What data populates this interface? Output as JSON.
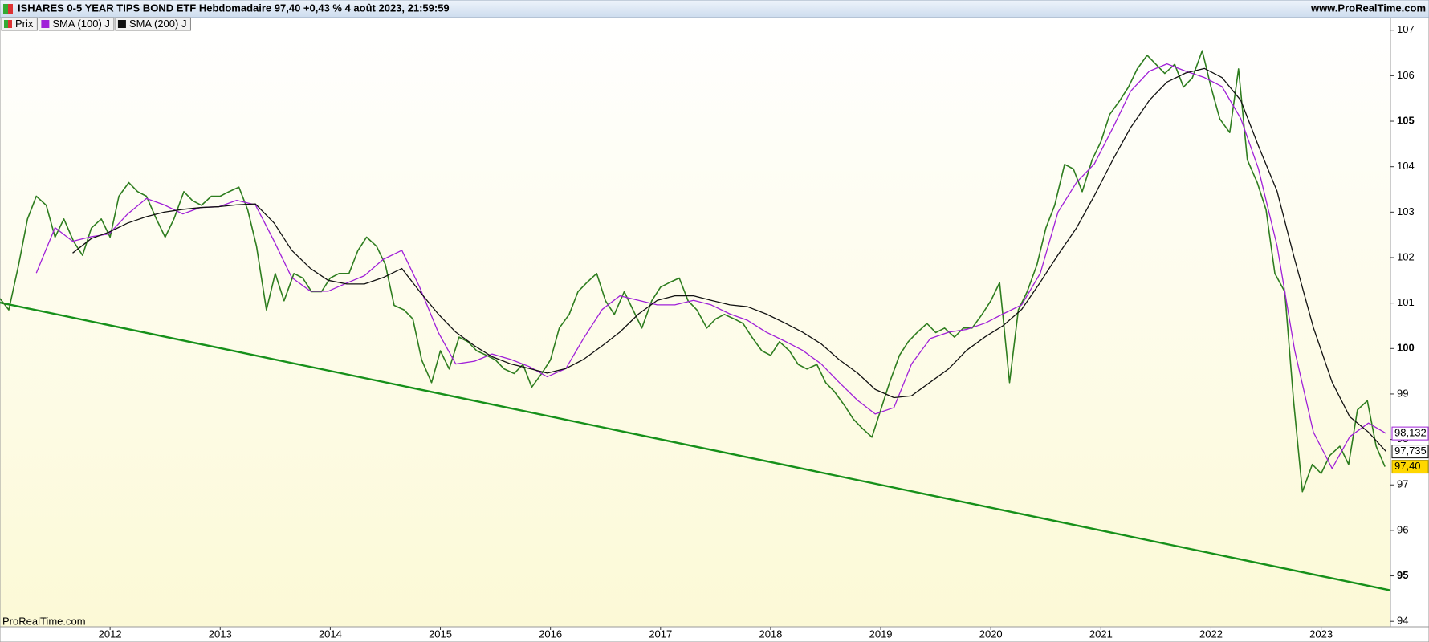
{
  "chart_data": {
    "type": "line",
    "title": "ISHARES 0-5 YEAR TIPS BOND ETF Hebdomadaire 97,40 +0,43 % 4 août 2023, 21:59:59",
    "source_top": "www.ProRealTime.com",
    "source_bottom": "ProRealTime.com",
    "xlim": [
      2011.0,
      2023.63
    ],
    "xticks": [
      2012,
      2013,
      2014,
      2015,
      2016,
      2017,
      2018,
      2019,
      2020,
      2021,
      2022,
      2023
    ],
    "ylim": [
      93.88,
      107.26
    ],
    "yticks": [
      94,
      95,
      96,
      97,
      98,
      99,
      100,
      101,
      102,
      103,
      104,
      105,
      106,
      107
    ],
    "series": [
      {
        "name": "Prix",
        "color": "#2e7d1f",
        "value_label": "97,40",
        "x": [
          2011.0,
          2011.08,
          2011.17,
          2011.25,
          2011.33,
          2011.42,
          2011.5,
          2011.58,
          2011.67,
          2011.75,
          2011.83,
          2011.92,
          2012.0,
          2012.08,
          2012.17,
          2012.25,
          2012.33,
          2012.42,
          2012.5,
          2012.58,
          2012.67,
          2012.75,
          2012.83,
          2012.92,
          2013.0,
          2013.08,
          2013.17,
          2013.25,
          2013.33,
          2013.42,
          2013.5,
          2013.58,
          2013.67,
          2013.75,
          2013.83,
          2013.92,
          2014.0,
          2014.08,
          2014.17,
          2014.25,
          2014.33,
          2014.42,
          2014.5,
          2014.58,
          2014.67,
          2014.75,
          2014.83,
          2014.92,
          2015.0,
          2015.08,
          2015.17,
          2015.25,
          2015.33,
          2015.42,
          2015.5,
          2015.58,
          2015.67,
          2015.75,
          2015.83,
          2015.92,
          2016.0,
          2016.08,
          2016.17,
          2016.25,
          2016.33,
          2016.42,
          2016.5,
          2016.58,
          2016.67,
          2016.75,
          2016.83,
          2016.92,
          2017.0,
          2017.08,
          2017.17,
          2017.25,
          2017.33,
          2017.42,
          2017.5,
          2017.58,
          2017.67,
          2017.75,
          2017.83,
          2017.92,
          2018.0,
          2018.08,
          2018.17,
          2018.25,
          2018.33,
          2018.42,
          2018.5,
          2018.58,
          2018.67,
          2018.75,
          2018.83,
          2018.92,
          2019.0,
          2019.08,
          2019.17,
          2019.25,
          2019.33,
          2019.42,
          2019.5,
          2019.58,
          2019.67,
          2019.75,
          2019.83,
          2019.92,
          2020.0,
          2020.08,
          2020.17,
          2020.25,
          2020.33,
          2020.42,
          2020.5,
          2020.58,
          2020.67,
          2020.75,
          2020.83,
          2020.92,
          2021.0,
          2021.08,
          2021.17,
          2021.25,
          2021.33,
          2021.42,
          2021.5,
          2021.58,
          2021.67,
          2021.75,
          2021.83,
          2021.92,
          2022.0,
          2022.08,
          2022.17,
          2022.25,
          2022.33,
          2022.42,
          2022.5,
          2022.58,
          2022.67,
          2022.75,
          2022.83,
          2022.92,
          2023.0,
          2023.08,
          2023.17,
          2023.25,
          2023.33,
          2023.42,
          2023.5,
          2023.58
        ],
        "values": [
          101.1,
          100.85,
          101.85,
          102.85,
          103.35,
          103.15,
          102.45,
          102.85,
          102.35,
          102.05,
          102.65,
          102.85,
          102.45,
          103.35,
          103.65,
          103.45,
          103.35,
          102.85,
          102.45,
          102.85,
          103.45,
          103.25,
          103.15,
          103.35,
          103.35,
          103.45,
          103.55,
          103.05,
          102.25,
          100.85,
          101.65,
          101.05,
          101.65,
          101.55,
          101.25,
          101.25,
          101.55,
          101.65,
          101.65,
          102.15,
          102.45,
          102.25,
          101.85,
          100.95,
          100.85,
          100.65,
          99.75,
          99.25,
          99.95,
          99.55,
          100.25,
          100.15,
          99.95,
          99.85,
          99.75,
          99.55,
          99.45,
          99.65,
          99.15,
          99.45,
          99.75,
          100.45,
          100.75,
          101.25,
          101.45,
          101.65,
          101.05,
          100.75,
          101.25,
          100.85,
          100.45,
          101.05,
          101.35,
          101.45,
          101.55,
          101.05,
          100.85,
          100.45,
          100.65,
          100.75,
          100.65,
          100.55,
          100.25,
          99.95,
          99.85,
          100.15,
          99.95,
          99.65,
          99.55,
          99.65,
          99.25,
          99.05,
          98.75,
          98.45,
          98.25,
          98.05,
          98.65,
          99.25,
          99.85,
          100.15,
          100.35,
          100.55,
          100.35,
          100.45,
          100.25,
          100.45,
          100.45,
          100.75,
          101.05,
          101.45,
          99.25,
          100.85,
          101.25,
          101.85,
          102.65,
          103.15,
          104.05,
          103.95,
          103.45,
          104.15,
          104.55,
          105.15,
          105.45,
          105.75,
          106.15,
          106.45,
          106.25,
          106.05,
          106.25,
          105.75,
          105.95,
          106.55,
          105.75,
          105.05,
          104.75,
          106.15,
          104.15,
          103.65,
          103.05,
          101.65,
          101.25,
          98.85,
          96.85,
          97.45,
          97.25,
          97.65,
          97.85,
          97.45,
          98.65,
          98.85,
          97.85,
          97.4
        ]
      },
      {
        "name": "SMA (100) J",
        "color": "#a020d8",
        "value_label": "98,132",
        "x": [
          2011.33,
          2011.5,
          2011.66,
          2011.83,
          2011.99,
          2012.16,
          2012.33,
          2012.49,
          2012.66,
          2012.82,
          2012.99,
          2013.15,
          2013.32,
          2013.49,
          2013.65,
          2013.82,
          2013.98,
          2014.15,
          2014.31,
          2014.48,
          2014.65,
          2014.81,
          2014.98,
          2015.14,
          2015.31,
          2015.47,
          2015.64,
          2015.81,
          2015.97,
          2016.14,
          2016.3,
          2016.47,
          2016.63,
          2016.8,
          2016.97,
          2017.13,
          2017.3,
          2017.46,
          2017.63,
          2017.79,
          2017.96,
          2018.13,
          2018.29,
          2018.46,
          2018.62,
          2018.79,
          2018.95,
          2019.12,
          2019.28,
          2019.45,
          2019.62,
          2019.78,
          2019.95,
          2020.11,
          2020.28,
          2020.45,
          2020.61,
          2020.78,
          2020.94,
          2021.11,
          2021.27,
          2021.44,
          2021.6,
          2021.77,
          2021.94,
          2022.1,
          2022.27,
          2022.43,
          2022.6,
          2022.76,
          2022.93,
          2023.1,
          2023.26,
          2023.43,
          2023.59
        ],
        "values": [
          101.66,
          102.66,
          102.36,
          102.46,
          102.52,
          102.96,
          103.3,
          103.16,
          102.96,
          103.1,
          103.12,
          103.26,
          103.16,
          102.36,
          101.56,
          101.26,
          101.26,
          101.44,
          101.6,
          101.96,
          102.16,
          101.36,
          100.36,
          99.66,
          99.72,
          99.88,
          99.76,
          99.6,
          99.38,
          99.56,
          100.22,
          100.86,
          101.16,
          101.06,
          100.96,
          100.96,
          101.06,
          100.96,
          100.76,
          100.62,
          100.36,
          100.16,
          99.96,
          99.66,
          99.26,
          98.86,
          98.56,
          98.7,
          99.66,
          100.22,
          100.36,
          100.42,
          100.56,
          100.76,
          100.96,
          101.66,
          103.0,
          103.66,
          104.06,
          104.86,
          105.66,
          106.1,
          106.26,
          106.1,
          105.96,
          105.76,
          105.06,
          103.96,
          102.26,
          99.96,
          98.16,
          97.36,
          98.06,
          98.36,
          98.132
        ]
      },
      {
        "name": "SMA (200) J",
        "color": "#111111",
        "value_label": "97,735",
        "x": [
          2011.66,
          2011.83,
          2011.99,
          2012.16,
          2012.33,
          2012.49,
          2012.66,
          2012.82,
          2012.99,
          2013.15,
          2013.32,
          2013.49,
          2013.65,
          2013.82,
          2013.98,
          2014.15,
          2014.31,
          2014.48,
          2014.65,
          2014.81,
          2014.98,
          2015.14,
          2015.31,
          2015.47,
          2015.64,
          2015.81,
          2015.97,
          2016.14,
          2016.3,
          2016.47,
          2016.63,
          2016.8,
          2016.97,
          2017.13,
          2017.3,
          2017.46,
          2017.63,
          2017.79,
          2017.96,
          2018.13,
          2018.29,
          2018.46,
          2018.62,
          2018.79,
          2018.95,
          2019.12,
          2019.28,
          2019.45,
          2019.62,
          2019.78,
          2019.95,
          2020.11,
          2020.28,
          2020.45,
          2020.61,
          2020.78,
          2020.94,
          2021.11,
          2021.27,
          2021.44,
          2021.6,
          2021.77,
          2021.94,
          2022.1,
          2022.27,
          2022.43,
          2022.6,
          2022.76,
          2022.93,
          2023.1,
          2023.26,
          2023.43,
          2023.59
        ],
        "values": [
          102.1,
          102.42,
          102.56,
          102.76,
          102.9,
          103.0,
          103.06,
          103.1,
          103.12,
          103.16,
          103.18,
          102.76,
          102.16,
          101.76,
          101.5,
          101.42,
          101.42,
          101.56,
          101.76,
          101.26,
          100.76,
          100.36,
          100.06,
          99.82,
          99.66,
          99.56,
          99.46,
          99.56,
          99.76,
          100.06,
          100.36,
          100.76,
          101.06,
          101.16,
          101.16,
          101.06,
          100.96,
          100.92,
          100.76,
          100.56,
          100.36,
          100.1,
          99.76,
          99.46,
          99.1,
          98.92,
          98.96,
          99.26,
          99.56,
          99.96,
          100.26,
          100.5,
          100.86,
          101.46,
          102.06,
          102.66,
          103.36,
          104.16,
          104.86,
          105.46,
          105.86,
          106.06,
          106.16,
          105.96,
          105.46,
          104.46,
          103.46,
          101.96,
          100.46,
          99.26,
          98.5,
          98.16,
          97.735
        ]
      }
    ],
    "trendline": {
      "color": "#16901a",
      "x": [
        2011.0,
        2023.63
      ],
      "values": [
        101.01,
        94.68
      ]
    }
  }
}
